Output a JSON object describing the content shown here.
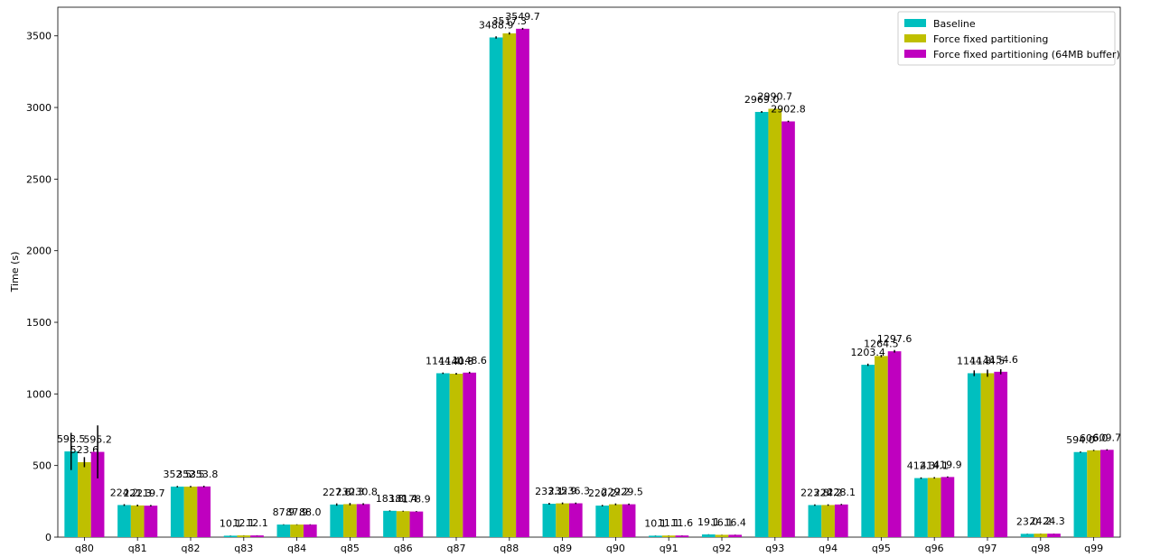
{
  "chart_data": {
    "type": "bar",
    "title": "",
    "xlabel": "",
    "ylabel": "Time (s)",
    "ylim": [
      0,
      3700
    ],
    "yticks": [
      0,
      500,
      1000,
      1500,
      2000,
      2500,
      3000,
      3500
    ],
    "grid": false,
    "legend_position": "top-right",
    "categories": [
      "q80",
      "q81",
      "q82",
      "q83",
      "q84",
      "q85",
      "q86",
      "q87",
      "q88",
      "q89",
      "q90",
      "q91",
      "q92",
      "q93",
      "q94",
      "q95",
      "q96",
      "q97",
      "q98",
      "q99"
    ],
    "series": [
      {
        "name": "Baseline",
        "color": "#00bfbf",
        "values": [
          598.5,
          224.2,
          352.5,
          10.1,
          87.9,
          227.6,
          183.8,
          1144.4,
          3488.9,
          233.1,
          220.2,
          10.1,
          19.1,
          2969.0,
          223.8,
          1203.4,
          412.3,
          1144.3,
          23.0,
          594.0
        ],
        "labels": [
          "598.5",
          "224.2",
          "352.5",
          "10.1",
          "87.9",
          "227.6",
          "183.8",
          "1144.4",
          "3488.9",
          "233.1",
          "220.2",
          "10.1",
          "19.1",
          "2969.0",
          "223.8",
          "1203.4",
          "412.3",
          "1144.3",
          "23.0",
          "594.0"
        ],
        "errors": [
          130,
          6,
          5,
          1,
          2,
          8,
          3,
          5,
          8,
          6,
          5,
          1,
          1,
          6,
          5,
          8,
          5,
          20,
          1,
          4
        ]
      },
      {
        "name": "Force fixed partitioning",
        "color": "#bfbf00",
        "values": [
          523.6,
          221.3,
          352.5,
          12.1,
          87.9,
          230.3,
          181.4,
          1140.8,
          3517.3,
          235.9,
          229.2,
          11.1,
          16.1,
          2990.7,
          224.2,
          1264.5,
          414.1,
          1144.5,
          24.2,
          606.0
        ],
        "labels": [
          "523.6",
          "221.3",
          "352.5",
          "12.1",
          "87.9",
          "230.3",
          "181.4",
          "1140.8",
          "3517.3",
          "235.9",
          "229.2",
          "11.1",
          "16.1",
          "2990.7",
          "224.2",
          "1264.5",
          "414.1",
          "1144.5",
          "24.2",
          "606.0"
        ],
        "errors": [
          35,
          6,
          5,
          1,
          2,
          8,
          3,
          6,
          8,
          6,
          6,
          1,
          1,
          7,
          5,
          8,
          5,
          25,
          1,
          4
        ]
      },
      {
        "name": "Force fixed partitioning (64MB buffer)",
        "color": "#bf00bf",
        "values": [
          595.2,
          219.7,
          353.8,
          12.1,
          88.0,
          230.8,
          178.9,
          1148.6,
          3549.7,
          236.3,
          229.5,
          11.6,
          16.4,
          2902.8,
          228.1,
          1297.6,
          419.9,
          1154.6,
          24.3,
          609.7
        ],
        "labels": [
          "595.2",
          "219.7",
          "353.8",
          "12.1",
          "88.0",
          "230.8",
          "178.9",
          "1148.6",
          "3549.7",
          "236.3",
          "229.5",
          "11.6",
          "16.4",
          "2902.8",
          "228.1",
          "1297.6",
          "419.9",
          "1154.6",
          "24.3",
          "609.7"
        ],
        "errors": [
          185,
          5,
          5,
          1,
          2,
          6,
          3,
          6,
          6,
          5,
          5,
          1,
          1,
          5,
          4,
          9,
          4,
          18,
          1,
          4
        ]
      }
    ]
  }
}
